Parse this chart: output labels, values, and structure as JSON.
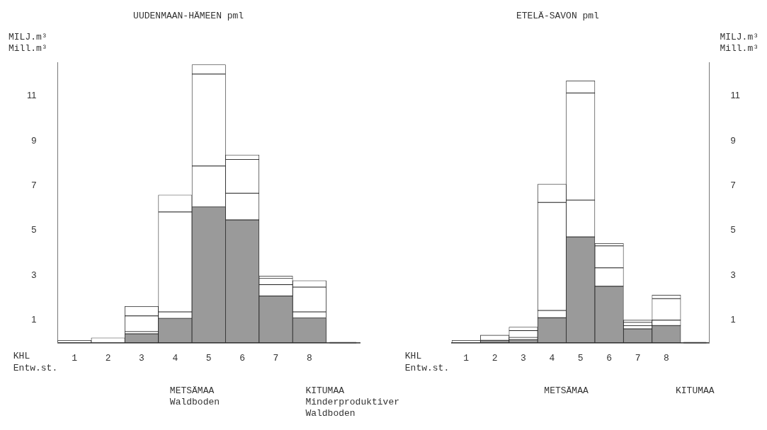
{
  "chart_data": [
    {
      "type": "bar",
      "title": "UUDENMAAN-HÄMEEN pml",
      "xlabel": "KHL\nEntw.st.",
      "ylabel": "MILJ.m³\nMill.m³",
      "stacked": true,
      "legend": false,
      "grid": false,
      "categories": [
        "1",
        "2",
        "3",
        "4",
        "5",
        "6",
        "7",
        "8",
        null
      ],
      "series": [
        {
          "color": "#9a9a9a",
          "values": [
            0,
            0,
            0.39,
            1.08,
            6.05,
            5.47,
            2.08,
            1.1,
            0
          ]
        },
        {
          "color": "#ffffff",
          "values": [
            0.1,
            0.21,
            0.1,
            0.29,
            1.82,
            1.19,
            0.5,
            0.27,
            0
          ]
        },
        {
          "color": "#ffffff",
          "values": [
            0,
            0,
            0.7,
            4.45,
            4.1,
            1.5,
            0.29,
            1.1,
            0
          ]
        },
        {
          "color": "#ffffff",
          "values": [
            0,
            0,
            0.42,
            0.76,
            0.42,
            0.21,
            0.1,
            0.29,
            0
          ]
        }
      ],
      "ylim": [
        0,
        12.5
      ],
      "yticks": [
        1,
        3,
        5,
        7,
        9,
        11
      ],
      "annotations": [
        "METSÄMAA\nWaldboden",
        "KITUMAA\nMinderproduktiver\nWaldboden"
      ]
    },
    {
      "type": "bar",
      "title": "ETELÄ-SAVON pml",
      "xlabel": "KHL\nEntw.st.",
      "y2label": "MILJ.m³\nMill.m³",
      "stacked": true,
      "legend": false,
      "grid": false,
      "categories": [
        "1",
        "2",
        "3",
        "4",
        "5",
        "6",
        "7",
        "8",
        null
      ],
      "series": [
        {
          "color": "#9a9a9a",
          "axis": "y2",
          "values": [
            0,
            0.1,
            0.13,
            1.11,
            4.71,
            2.51,
            0.61,
            0.76,
            0
          ]
        },
        {
          "color": "#ffffff",
          "axis": "y2",
          "values": [
            0.1,
            0.23,
            0.1,
            0.32,
            1.64,
            0.82,
            0.14,
            0.24,
            0
          ]
        },
        {
          "color": "#ffffff",
          "axis": "y2",
          "values": [
            0,
            0,
            0.3,
            4.82,
            4.78,
            0.98,
            0.15,
            0.96,
            0
          ]
        },
        {
          "color": "#ffffff",
          "axis": "y2",
          "values": [
            0,
            0,
            0.16,
            0.81,
            0.54,
            0.11,
            0.1,
            0.16,
            0
          ]
        }
      ],
      "y2lim": [
        0,
        12.5
      ],
      "y2ticks": [
        1,
        3,
        5,
        7,
        9,
        11
      ],
      "annotations": [
        "METSÄMAA",
        "KITUMAA"
      ]
    }
  ]
}
